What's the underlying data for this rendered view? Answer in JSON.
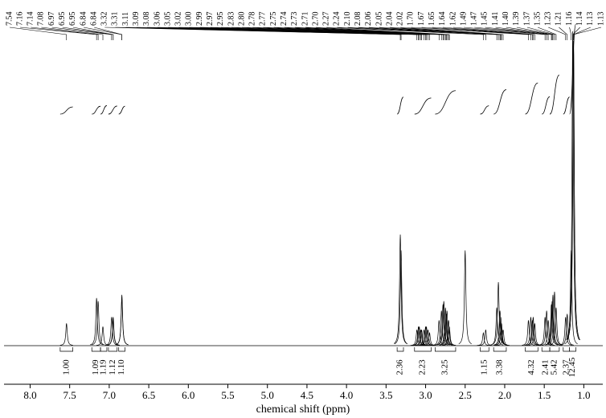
{
  "chart_data": {
    "type": "spectrum",
    "x_label": "chemical shift (ppm)",
    "xlim": [
      8.33,
      0.76
    ],
    "xticks": [
      {
        "value": 8,
        "label": "8.0"
      },
      7.5,
      {
        "value": 7,
        "label": "7.0"
      },
      6.5,
      {
        "value": 6,
        "label": "6.0"
      },
      5.5,
      {
        "value": 5,
        "label": "5.0"
      },
      4.5,
      {
        "value": 4,
        "label": "4.0"
      },
      3.5,
      {
        "value": 3,
        "label": "3.0"
      },
      2.5,
      {
        "value": 2,
        "label": "2.0"
      },
      1.5,
      {
        "value": 1,
        "label": "1.0"
      }
    ],
    "ylim": [
      0,
      100
    ],
    "color": "#000000",
    "peaks": {
      "x": [
        7.54,
        7.16,
        7.14,
        7.08,
        6.97,
        6.95,
        6.95,
        6.84,
        6.84,
        3.32,
        3.31,
        3.11,
        3.09,
        3.08,
        3.06,
        3.05,
        3.02,
        3.0,
        2.99,
        2.97,
        2.95,
        2.83,
        2.8,
        2.78,
        2.77,
        2.75,
        2.74,
        2.73,
        2.71,
        2.7,
        2.27,
        2.24,
        2.1,
        2.08,
        2.06,
        2.05,
        2.04,
        2.02,
        1.7,
        1.67,
        1.65,
        1.64,
        1.62,
        1.49,
        1.47,
        1.45,
        1.41,
        1.4,
        1.39,
        1.37,
        1.35,
        1.23,
        1.21,
        1.16,
        1.14,
        1.13,
        1.13
      ],
      "value_labels": [
        "7.54",
        "7.16",
        "7.14",
        "7.08",
        "6.97",
        "6.95",
        "6.95",
        "6.84",
        "6.84",
        "3.32",
        "3.31",
        "3.11",
        "3.09",
        "3.08",
        "3.06",
        "3.05",
        "3.02",
        "3.00",
        "2.99",
        "2.97",
        "2.95",
        "2.83",
        "2.80",
        "2.78",
        "2.77",
        "2.75",
        "2.74",
        "2.73",
        "2.71",
        "2.70",
        "2.27",
        "2.24",
        "2.10",
        "2.08",
        "2.06",
        "2.05",
        "2.04",
        "2.02",
        "1.70",
        "1.67",
        "1.65",
        "1.64",
        "1.62",
        "1.49",
        "1.47",
        "1.45",
        "1.41",
        "1.40",
        "1.39",
        "1.37",
        "1.35",
        "1.23",
        "1.21",
        "1.16",
        "1.14",
        "1.13",
        "1.13"
      ],
      "heights": [
        7,
        15,
        14,
        6,
        9,
        9,
        8,
        16,
        15,
        35,
        30,
        5,
        6,
        6,
        5,
        5,
        5,
        6,
        6,
        5,
        4,
        8,
        11,
        13,
        14,
        12,
        10,
        11,
        8,
        6,
        4,
        5,
        12,
        20,
        11,
        9,
        7,
        5,
        8,
        9,
        8,
        9,
        7,
        9,
        11,
        8,
        13,
        14,
        16,
        17,
        12,
        9,
        10,
        30,
        99,
        96,
        96
      ]
    },
    "solvent_peak": {
      "x": 2.5,
      "height": 30
    },
    "integrals": {
      "values": [
        1.0,
        1.09,
        1.19,
        1.12,
        1.1,
        2.36,
        2.23,
        3.25,
        1.15,
        3.38,
        4.32,
        2.41,
        5.42,
        2.37,
        12.45
      ],
      "value_labels": [
        "1.00",
        "1.09",
        "1.19",
        "1.12",
        "1.10",
        "2.36",
        "2.23",
        "3.25",
        "1.15",
        "3.38",
        "4.32",
        "2.41",
        "5.42",
        "2.37",
        "12.45"
      ],
      "ranges": [
        [
          7.62,
          7.46
        ],
        [
          7.22,
          7.11
        ],
        [
          7.11,
          7.03
        ],
        [
          7.01,
          6.9
        ],
        [
          6.88,
          6.8
        ],
        [
          3.36,
          3.28
        ],
        [
          3.14,
          2.93
        ],
        [
          2.88,
          2.62
        ],
        [
          2.31,
          2.2
        ],
        [
          2.14,
          1.98
        ],
        [
          1.74,
          1.58
        ],
        [
          1.53,
          1.43
        ],
        [
          1.43,
          1.31
        ],
        [
          1.26,
          1.18
        ],
        [
          1.18,
          1.1
        ]
      ]
    }
  }
}
